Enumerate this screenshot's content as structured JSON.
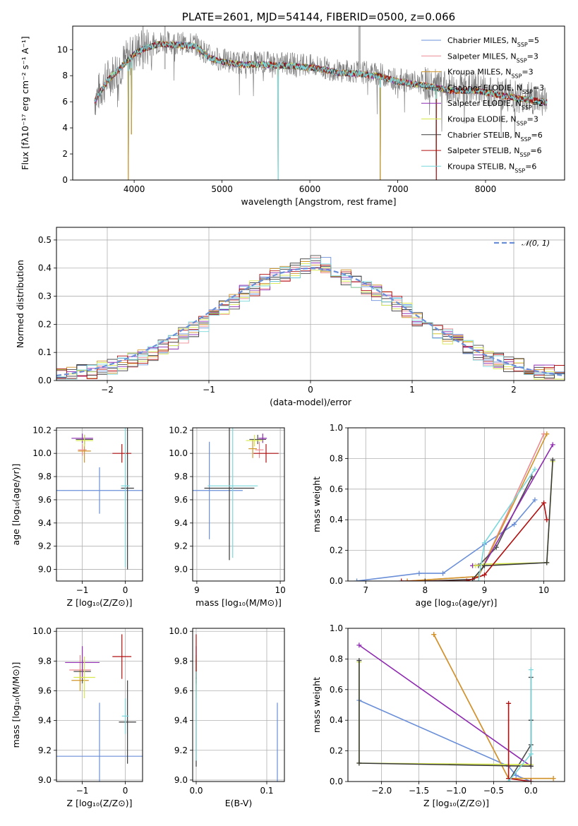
{
  "colors": {
    "chabrier_miles": "#6a8fd8",
    "salpeter_miles": "#ec8a92",
    "kroupa_miles": "#d09428",
    "chabrier_elodie": "#4d4d4d",
    "salpeter_elodie": "#8e2bb0",
    "kroupa_elodie": "#d6e84a",
    "chabrier_stelib": "#3a3a3a",
    "salpeter_stelib": "#b01010",
    "kroupa_stelib": "#7ad8dc",
    "data": "#808080"
  },
  "chart_data": [
    {
      "id": "spectrum",
      "type": "line",
      "title": "PLATE=2601, MJD=54144, FIBERID=0500, z=0.066",
      "xlabel": "wavelength [Angstrom, rest frame]",
      "ylabel": "Flux [fλ10⁻¹⁷ erg cm⁻² s⁻¹ A⁻¹]",
      "xlim": [
        3300,
        8900
      ],
      "ylim": [
        0,
        11.8
      ],
      "xticks": [
        4000,
        5000,
        6000,
        7000,
        8000
      ],
      "yticks": [
        0,
        2,
        4,
        6,
        8,
        10
      ],
      "grid": false,
      "legend_position": "top-right",
      "continuum": {
        "x": [
          3550,
          3700,
          3850,
          4000,
          4100,
          4300,
          4500,
          4700,
          4860,
          5000,
          5200,
          5500,
          5800,
          6100,
          6300,
          6560,
          6800,
          7000,
          7300,
          7600,
          7900,
          8200,
          8500,
          8700
        ],
        "y": [
          6.2,
          7.8,
          8.8,
          9.8,
          10.2,
          10.6,
          10.5,
          10.4,
          9.5,
          9.2,
          9.0,
          9.0,
          8.9,
          8.7,
          8.4,
          8.3,
          8.1,
          7.7,
          7.4,
          7.0,
          7.0,
          6.6,
          6.3,
          6.1
        ]
      },
      "dips": [
        {
          "x": 3934,
          "y": 0.0
        },
        {
          "x": 3968,
          "y": 3.5
        },
        {
          "x": 5640,
          "y": 0.0
        },
        {
          "x": 6800,
          "y": 0.0
        },
        {
          "x": 7440,
          "y": 0.0
        }
      ],
      "legend": [
        {
          "key": "chabrier_miles",
          "label": "Chabrier MILES, N",
          "sub": "SSP",
          "suffix": "=5"
        },
        {
          "key": "salpeter_miles",
          "label": "Salpeter MILES, N",
          "sub": "SSP",
          "suffix": "=3"
        },
        {
          "key": "kroupa_miles",
          "label": "Kroupa MILES, N",
          "sub": "SSP",
          "suffix": "=3"
        },
        {
          "key": "chabrier_elodie",
          "label": "Chabrier ELODIE, N",
          "sub": "SSP",
          "suffix": "=3"
        },
        {
          "key": "salpeter_elodie",
          "label": "Salpeter ELODIE, N",
          "sub": "SSP",
          "suffix": "=2"
        },
        {
          "key": "kroupa_elodie",
          "label": "Kroupa ELODIE, N",
          "sub": "SSP",
          "suffix": "=3"
        },
        {
          "key": "chabrier_stelib",
          "label": "Chabrier STELIB, N",
          "sub": "SSP",
          "suffix": "=6"
        },
        {
          "key": "salpeter_stelib",
          "label": "Salpeter STELIB, N",
          "sub": "SSP",
          "suffix": "=6"
        },
        {
          "key": "kroupa_stelib",
          "label": "Kroupa STELIB, N",
          "sub": "SSP",
          "suffix": "=6"
        }
      ]
    },
    {
      "id": "residuals",
      "type": "line",
      "xlabel": "(data-model)/error",
      "ylabel": "Normed distribution",
      "xlim": [
        -2.5,
        2.5
      ],
      "ylim": [
        0,
        0.545
      ],
      "xticks": [
        -2,
        -1,
        0,
        1,
        2
      ],
      "yticks": [
        0.0,
        0.1,
        0.2,
        0.3,
        0.4,
        0.5
      ],
      "grid": true,
      "legend_position": "top-right",
      "legend": [
        {
          "label": "𝒩(0, 1)",
          "color": "#6a8fd8"
        }
      ],
      "hist_bin_width": 0.1,
      "hist_start": -2.5,
      "hist_base": [
        0.02,
        0.025,
        0.03,
        0.035,
        0.04,
        0.05,
        0.06,
        0.07,
        0.08,
        0.1,
        0.12,
        0.14,
        0.16,
        0.18,
        0.2,
        0.23,
        0.26,
        0.28,
        0.31,
        0.33,
        0.35,
        0.37,
        0.38,
        0.39,
        0.41,
        0.42,
        0.41,
        0.39,
        0.37,
        0.35,
        0.33,
        0.31,
        0.29,
        0.27,
        0.25,
        0.22,
        0.2,
        0.18,
        0.16,
        0.14,
        0.12,
        0.1,
        0.08,
        0.07,
        0.06,
        0.05,
        0.04,
        0.03,
        0.03,
        0.025
      ]
    },
    {
      "id": "age_vs_z",
      "type": "scatter",
      "xlabel": "Z [log₁₀(Z/Z⊙)]",
      "ylabel": "age  [log₁₀(age/yr)]",
      "xlim": [
        -1.6,
        0.4
      ],
      "ylim": [
        8.9,
        10.22
      ],
      "xticks": [
        -1,
        0
      ],
      "yticks": [
        9.0,
        9.2,
        9.4,
        9.6,
        9.8,
        10.0,
        10.2
      ],
      "grid": true,
      "points": [
        {
          "key": "chabrier_miles",
          "x": -0.6,
          "y": 9.68,
          "xerr": 1.0,
          "yerr": 0.2
        },
        {
          "key": "salpeter_miles",
          "x": -1.0,
          "y": 10.03,
          "xerr": 0.1,
          "yerr": 0.05
        },
        {
          "key": "kroupa_miles",
          "x": -0.95,
          "y": 10.02,
          "xerr": 0.15,
          "yerr": 0.1
        },
        {
          "key": "chabrier_elodie",
          "x": -0.95,
          "y": 10.12,
          "xerr": 0.2,
          "yerr": 0.04
        },
        {
          "key": "salpeter_elodie",
          "x": -1.0,
          "y": 10.13,
          "xerr": 0.25,
          "yerr": 0.04
        },
        {
          "key": "kroupa_elodie",
          "x": -0.95,
          "y": 10.11,
          "xerr": 0.2,
          "yerr": 0.05
        },
        {
          "key": "chabrier_stelib",
          "x": 0.05,
          "y": 9.7,
          "xerr": 0.15,
          "yerr": 0.7
        },
        {
          "key": "salpeter_stelib",
          "x": -0.08,
          "y": 10.0,
          "xerr": 0.22,
          "yerr": 0.08
        },
        {
          "key": "kroupa_stelib",
          "x": 0.0,
          "y": 9.72,
          "xerr": 0.1,
          "yerr": 0.7
        }
      ]
    },
    {
      "id": "age_vs_mass",
      "type": "scatter",
      "xlabel": "mass [log₁₀(M/M⊙)]",
      "ylabel": "",
      "xlim": [
        8.95,
        10.05
      ],
      "ylim": [
        8.9,
        10.22
      ],
      "xticks": [
        9,
        10
      ],
      "yticks": [
        9.0,
        9.2,
        9.4,
        9.6,
        9.8,
        10.0,
        10.2
      ],
      "grid": true,
      "points": [
        {
          "key": "chabrier_miles",
          "x": 9.15,
          "y": 9.68,
          "xerr": 0.4,
          "yerr": 0.42
        },
        {
          "key": "salpeter_miles",
          "x": 9.75,
          "y": 10.03,
          "xerr": 0.05,
          "yerr": 0.07
        },
        {
          "key": "kroupa_miles",
          "x": 9.67,
          "y": 10.04,
          "xerr": 0.05,
          "yerr": 0.08
        },
        {
          "key": "chabrier_elodie",
          "x": 9.73,
          "y": 10.12,
          "xerr": 0.1,
          "yerr": 0.04
        },
        {
          "key": "salpeter_elodie",
          "x": 9.79,
          "y": 10.13,
          "xerr": 0.05,
          "yerr": 0.04
        },
        {
          "key": "kroupa_elodie",
          "x": 9.69,
          "y": 10.11,
          "xerr": 0.1,
          "yerr": 0.05
        },
        {
          "key": "chabrier_stelib",
          "x": 9.39,
          "y": 9.7,
          "xerr": 0.3,
          "yerr": 0.62
        },
        {
          "key": "salpeter_stelib",
          "x": 9.83,
          "y": 10.0,
          "xerr": 0.15,
          "yerr": 0.08
        },
        {
          "key": "kroupa_stelib",
          "x": 9.43,
          "y": 9.72,
          "xerr": 0.3,
          "yerr": 0.62
        }
      ]
    },
    {
      "id": "weight_vs_age",
      "type": "line",
      "xlabel": "age  [log₁₀(age/yr)]",
      "ylabel": "mass weight",
      "xlim": [
        6.7,
        10.35
      ],
      "ylim": [
        0,
        1.0
      ],
      "xticks": [
        7,
        8,
        9,
        10
      ],
      "yticks": [
        0.0,
        0.2,
        0.4,
        0.6,
        0.8,
        1.0
      ],
      "grid": true,
      "series": [
        {
          "key": "chabrier_miles",
          "x": [
            6.85,
            7.9,
            8.3,
            9.0,
            9.5,
            9.85
          ],
          "y": [
            0.0,
            0.05,
            0.05,
            0.24,
            0.37,
            0.53
          ]
        },
        {
          "key": "salpeter_miles",
          "x": [
            7.7,
            8.9,
            10.0
          ],
          "y": [
            0.0,
            0.03,
            0.96
          ]
        },
        {
          "key": "kroupa_miles",
          "x": [
            7.7,
            8.9,
            10.05
          ],
          "y": [
            0.0,
            0.03,
            0.96
          ]
        },
        {
          "key": "chabrier_elodie",
          "x": [
            8.9,
            9.2,
            9.8
          ],
          "y": [
            0.1,
            0.22,
            0.68
          ]
        },
        {
          "key": "salpeter_elodie",
          "x": [
            8.8,
            9.0,
            10.15
          ],
          "y": [
            0.1,
            0.11,
            0.89
          ]
        },
        {
          "key": "kroupa_elodie",
          "x": [
            8.85,
            9.0,
            10.05,
            10.15
          ],
          "y": [
            0.1,
            0.11,
            0.12,
            0.78
          ]
        },
        {
          "key": "chabrier_stelib",
          "x": [
            8.0,
            8.8,
            9.0,
            10.05,
            10.15
          ],
          "y": [
            0.0,
            0.01,
            0.1,
            0.12,
            0.79
          ]
        },
        {
          "key": "salpeter_stelib",
          "x": [
            7.6,
            8.7,
            9.0,
            10.0,
            10.05
          ],
          "y": [
            0.0,
            0.0,
            0.04,
            0.51,
            0.4
          ]
        },
        {
          "key": "kroupa_stelib",
          "x": [
            8.9,
            9.0,
            9.85
          ],
          "y": [
            0.0,
            0.25,
            0.73
          ]
        }
      ]
    },
    {
      "id": "mass_vs_z",
      "type": "scatter",
      "xlabel": "Z [log₁₀(Z/Z⊙)]",
      "ylabel": "mass [log₁₀(M/M⊙)]",
      "xlim": [
        -1.6,
        0.4
      ],
      "ylim": [
        8.99,
        10.02
      ],
      "xticks": [
        -1,
        0
      ],
      "yticks": [
        9.0,
        9.2,
        9.4,
        9.6,
        9.8,
        10.0
      ],
      "grid": true,
      "points": [
        {
          "key": "chabrier_miles",
          "x": -0.6,
          "y": 9.16,
          "xerr": 1.0,
          "yerr": 0.36
        },
        {
          "key": "salpeter_miles",
          "x": -1.05,
          "y": 9.74,
          "xerr": 0.25,
          "yerr": 0.1
        },
        {
          "key": "kroupa_miles",
          "x": -1.05,
          "y": 9.67,
          "xerr": 0.2,
          "yerr": 0.07
        },
        {
          "key": "chabrier_elodie",
          "x": -1.0,
          "y": 9.73,
          "xerr": 0.2,
          "yerr": 0.08
        },
        {
          "key": "salpeter_elodie",
          "x": -1.0,
          "y": 9.79,
          "xerr": 0.4,
          "yerr": 0.11
        },
        {
          "key": "kroupa_elodie",
          "x": -0.95,
          "y": 9.69,
          "xerr": 0.25,
          "yerr": 0.14
        },
        {
          "key": "chabrier_stelib",
          "x": 0.05,
          "y": 9.39,
          "xerr": 0.2,
          "yerr": 0.28
        },
        {
          "key": "salpeter_stelib",
          "x": -0.08,
          "y": 9.83,
          "xerr": 0.22,
          "yerr": 0.15
        },
        {
          "key": "kroupa_stelib",
          "x": 0.0,
          "y": 9.43,
          "xerr": 0.08,
          "yerr": 0.12
        }
      ]
    },
    {
      "id": "mass_vs_ebv",
      "type": "scatter",
      "xlabel": "E(B-V)",
      "ylabel": "",
      "xlim": [
        -0.005,
        0.125
      ],
      "ylim": [
        8.99,
        10.02
      ],
      "xticks": [
        0.0,
        0.1
      ],
      "yticks": [
        9.0,
        9.2,
        9.4,
        9.6,
        9.8,
        10.0
      ],
      "grid": true,
      "points": [
        {
          "key": "chabrier_miles",
          "x": 0.115,
          "y": 9.16,
          "xerr": 0.0,
          "yerr": 0.36
        },
        {
          "key": "salpeter_miles",
          "x": 0.0,
          "y": 9.74,
          "xerr": 0.0,
          "yerr": 0.1
        },
        {
          "key": "kroupa_miles",
          "x": 0.0,
          "y": 9.67,
          "xerr": 0.0,
          "yerr": 0.07
        },
        {
          "key": "chabrier_elodie",
          "x": 0.0,
          "y": 9.73,
          "xerr": 0.0,
          "yerr": 0.08
        },
        {
          "key": "salpeter_elodie",
          "x": 0.0,
          "y": 9.79,
          "xerr": 0.0,
          "yerr": 0.11
        },
        {
          "key": "kroupa_elodie",
          "x": 0.0,
          "y": 9.69,
          "xerr": 0.0,
          "yerr": 0.14
        },
        {
          "key": "chabrier_stelib",
          "x": 0.0,
          "y": 9.39,
          "xerr": 0.0,
          "yerr": 0.3
        },
        {
          "key": "salpeter_stelib",
          "x": 0.0,
          "y": 9.83,
          "xerr": 0.0,
          "yerr": 0.15
        },
        {
          "key": "kroupa_stelib",
          "x": 0.0,
          "y": 9.43,
          "xerr": 0.0,
          "yerr": 0.3
        }
      ]
    },
    {
      "id": "weight_vs_z",
      "type": "line",
      "xlabel": "Z [log₁₀(Z/Z⊙)]",
      "ylabel": "mass weight",
      "xlim": [
        -2.45,
        0.45
      ],
      "ylim": [
        0,
        1.0
      ],
      "xticks": [
        -2.0,
        -1.5,
        -1.0,
        -0.5,
        0.0
      ],
      "yticks": [
        0.0,
        0.2,
        0.4,
        0.6,
        0.8,
        1.0
      ],
      "grid": true,
      "series": [
        {
          "key": "chabrier_miles",
          "x": [
            -2.3,
            -0.3,
            -0.2,
            0.0
          ],
          "y": [
            0.53,
            0.1,
            0.04,
            0.0
          ]
        },
        {
          "key": "salpeter_miles",
          "x": [
            -1.3,
            -0.3,
            0.3
          ],
          "y": [
            0.96,
            0.02,
            0.02
          ]
        },
        {
          "key": "kroupa_miles",
          "x": [
            -1.3,
            -0.3,
            0.3
          ],
          "y": [
            0.96,
            0.02,
            0.02
          ]
        },
        {
          "key": "chabrier_elodie",
          "x": [
            -0.3,
            0.0,
            0.0
          ],
          "y": [
            0.0,
            0.24,
            0.68
          ]
        },
        {
          "key": "salpeter_elodie",
          "x": [
            -2.3,
            0.0
          ],
          "y": [
            0.89,
            0.1
          ]
        },
        {
          "key": "kroupa_elodie",
          "x": [
            -2.3,
            -2.3,
            0.0
          ],
          "y": [
            0.78,
            0.12,
            0.11
          ]
        },
        {
          "key": "chabrier_stelib",
          "x": [
            -2.3,
            -2.3,
            0.0,
            0.0
          ],
          "y": [
            0.79,
            0.12,
            0.1,
            0.4
          ]
        },
        {
          "key": "salpeter_stelib",
          "x": [
            -0.3,
            -0.3,
            0.0
          ],
          "y": [
            0.51,
            0.02,
            0.0
          ]
        },
        {
          "key": "kroupa_stelib",
          "x": [
            -0.3,
            0.0,
            0.0
          ],
          "y": [
            0.0,
            0.18,
            0.73
          ]
        }
      ]
    }
  ]
}
